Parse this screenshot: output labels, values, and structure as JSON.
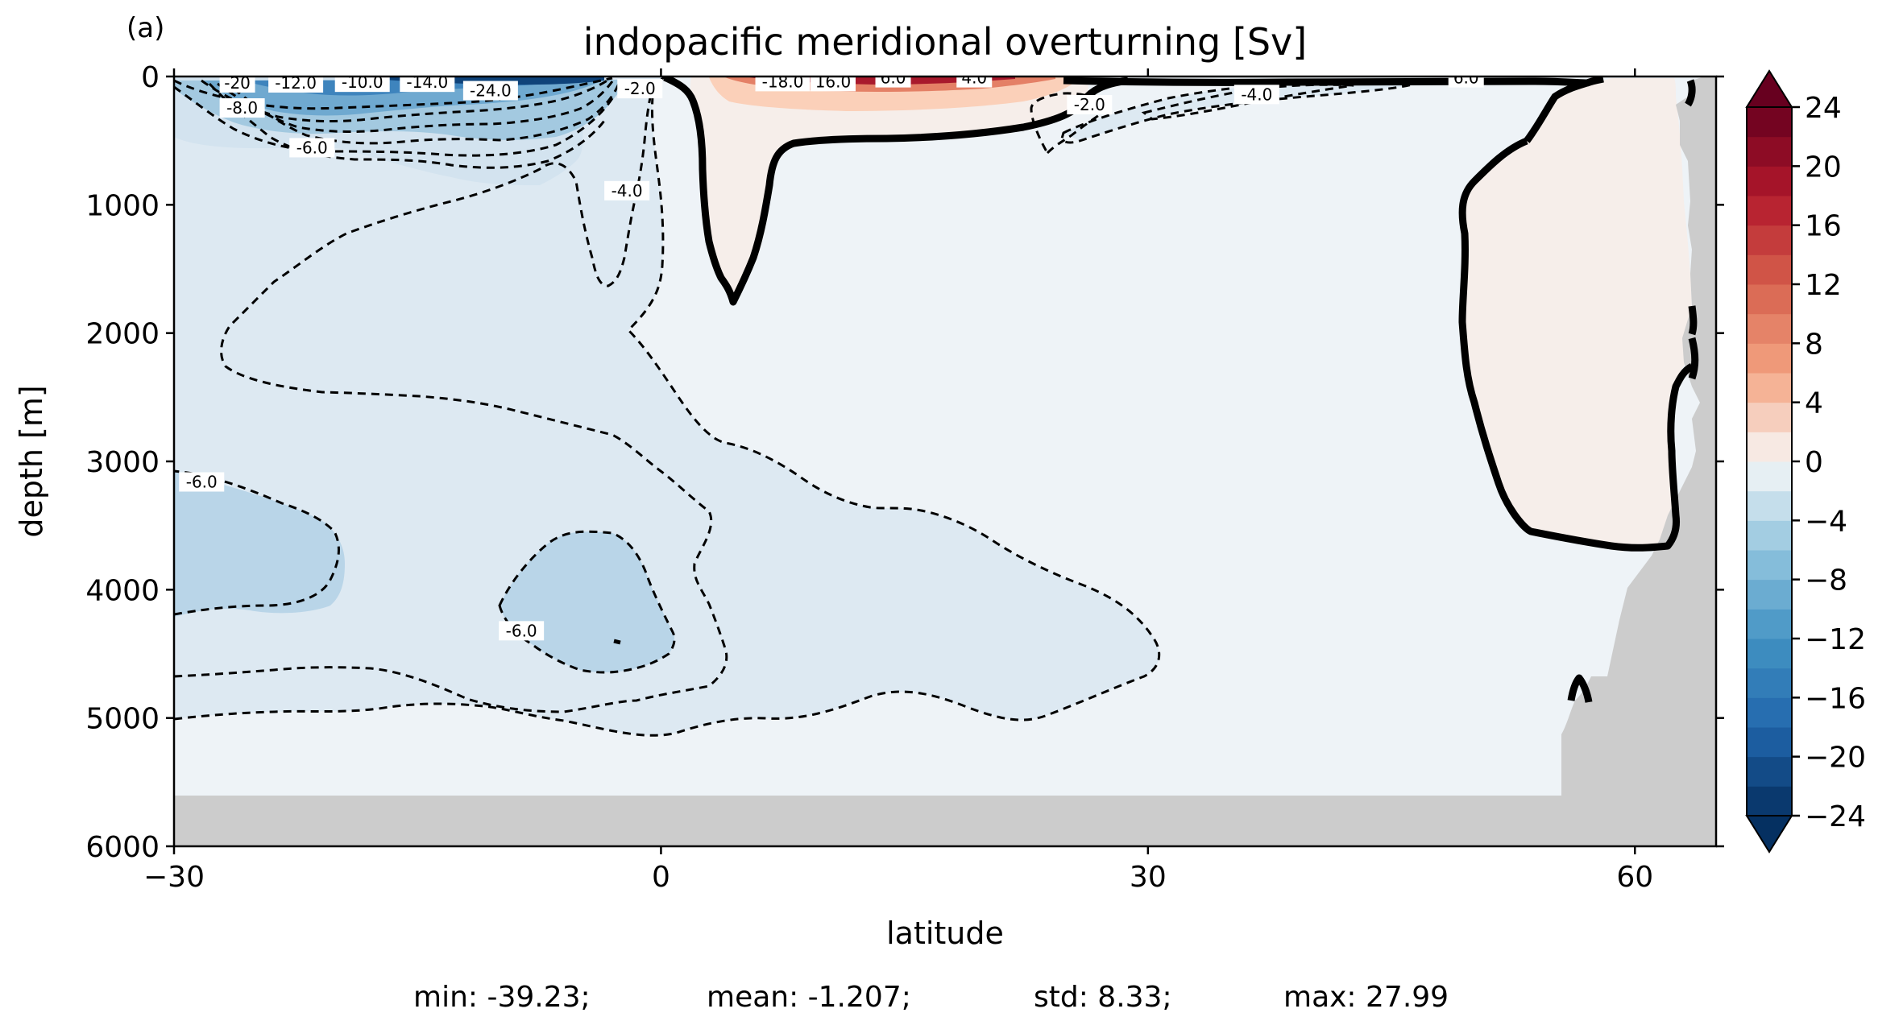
{
  "chart_data": {
    "type": "heatmap",
    "panel_label": "(a)",
    "title": "indopacific meridional overturning [Sv]",
    "xlabel": "latitude",
    "ylabel": "depth [m]",
    "xlim": [
      -30,
      65
    ],
    "ylim": [
      0,
      6000
    ],
    "y_inverted": true,
    "xticks": [
      -30,
      0,
      30,
      60
    ],
    "xtick_labels": [
      "−30",
      "0",
      "30",
      "60"
    ],
    "yticks": [
      0,
      1000,
      2000,
      3000,
      4000,
      5000,
      6000
    ],
    "ytick_labels": [
      "0",
      "1000",
      "2000",
      "3000",
      "4000",
      "5000",
      "6000"
    ],
    "colorbar": {
      "cmap": "RdBu_r",
      "min": -24,
      "max": 24,
      "step": 2,
      "extend": "both",
      "ticks": [
        24,
        20,
        16,
        12,
        8,
        4,
        0,
        -4,
        -8,
        -12,
        -16,
        -20,
        -24
      ],
      "tick_labels": [
        "24",
        "20",
        "16",
        "12",
        "8",
        "4",
        "0",
        "−4",
        "−8",
        "−12",
        "−16",
        "−20",
        "−24"
      ]
    },
    "contour_labels": [
      {
        "text": "-20",
        "x": -26.1,
        "y": 50
      },
      {
        "text": "-12.0",
        "x": -22.5,
        "y": 50
      },
      {
        "text": "-10.0",
        "x": -18.4,
        "y": 45
      },
      {
        "text": "-14.0",
        "x": -14.4,
        "y": 45
      },
      {
        "text": "-24.0",
        "x": -10.5,
        "y": 110
      },
      {
        "text": "-8.0",
        "x": -25.8,
        "y": 245
      },
      {
        "text": "-6.0",
        "x": -21.5,
        "y": 555
      },
      {
        "text": "-2.0",
        "x": -1.3,
        "y": 95
      },
      {
        "text": "-4.0",
        "x": -2.1,
        "y": 890
      },
      {
        "text": "-18.0",
        "x": 7.5,
        "y": 40
      },
      {
        "text": "16.0",
        "x": 10.6,
        "y": 40
      },
      {
        "text": "6.0",
        "x": 14.3,
        "y": 10
      },
      {
        "text": "4.0",
        "x": 19.3,
        "y": 10
      },
      {
        "text": "-2.0",
        "x": 26.4,
        "y": 220
      },
      {
        "text": "-4.0",
        "x": 36.7,
        "y": 140
      },
      {
        "text": "6.0",
        "x": 49.6,
        "y": 10
      },
      {
        "text": "-6.0",
        "x": -28.3,
        "y": 3160
      },
      {
        "text": "-6.0",
        "x": -8.6,
        "y": 4320
      }
    ],
    "stats": {
      "min": "min: -39.23;",
      "mean": "mean: -1.207;",
      "std": "std: 8.33;",
      "max": "max: 27.99"
    }
  }
}
